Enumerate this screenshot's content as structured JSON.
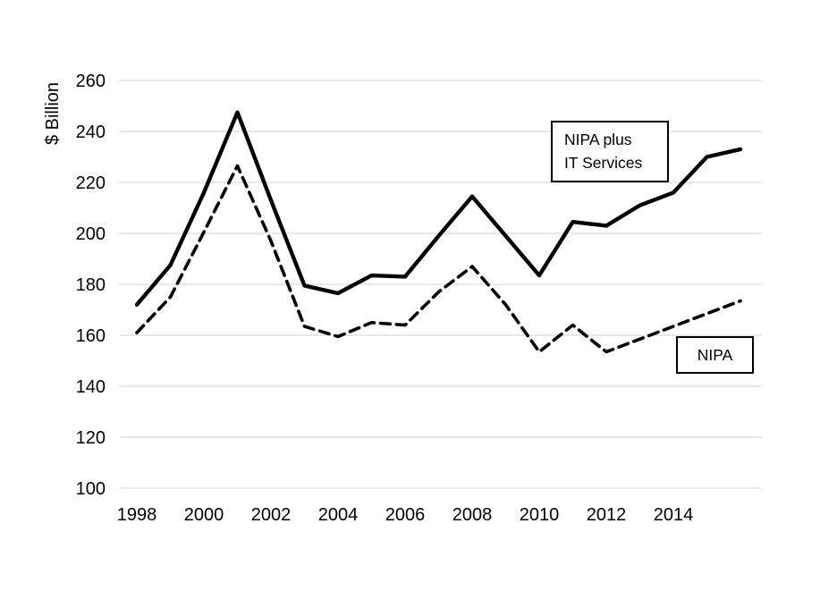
{
  "chart_data": {
    "type": "line",
    "title": "",
    "ylabel": "$ Billion",
    "xlabel": "",
    "x": [
      1998,
      1999,
      2000,
      2001,
      2002,
      2003,
      2004,
      2005,
      2006,
      2007,
      2008,
      2009,
      2010,
      2011,
      2012,
      2013,
      2014,
      2015,
      2016
    ],
    "series": [
      {
        "name": "NIPA plus IT Services",
        "line_style": "solid",
        "color": "#000000",
        "values": [
          172,
          187.5,
          216,
          247.5,
          213,
          179.5,
          176.5,
          183.5,
          183,
          199,
          214.5,
          199,
          183.5,
          204.5,
          203,
          211,
          216,
          230,
          233
        ]
      },
      {
        "name": "NIPA",
        "line_style": "dashed",
        "color": "#000000",
        "values": [
          161,
          175,
          200.5,
          226.5,
          197,
          163.5,
          159.5,
          165,
          164,
          177,
          187,
          172,
          153.5,
          164,
          153.5,
          158.5,
          163.5,
          168.5,
          173.5
        ]
      }
    ],
    "xticks": [
      1998,
      2000,
      2002,
      2004,
      2006,
      2008,
      2010,
      2012,
      2014
    ],
    "yticks": [
      100,
      120,
      140,
      160,
      180,
      200,
      220,
      240,
      260
    ],
    "xlim": [
      1998,
      2016
    ],
    "ylim": [
      100,
      260
    ],
    "grid": "horizontal",
    "grid_color": "#d9d9d9",
    "background": "#ffffff",
    "legend_position": "none",
    "annotations": [
      {
        "id": "nipa-plus-it-services",
        "text": "NIPA plus\nIT Services"
      },
      {
        "id": "nipa",
        "text": "NIPA"
      }
    ]
  }
}
